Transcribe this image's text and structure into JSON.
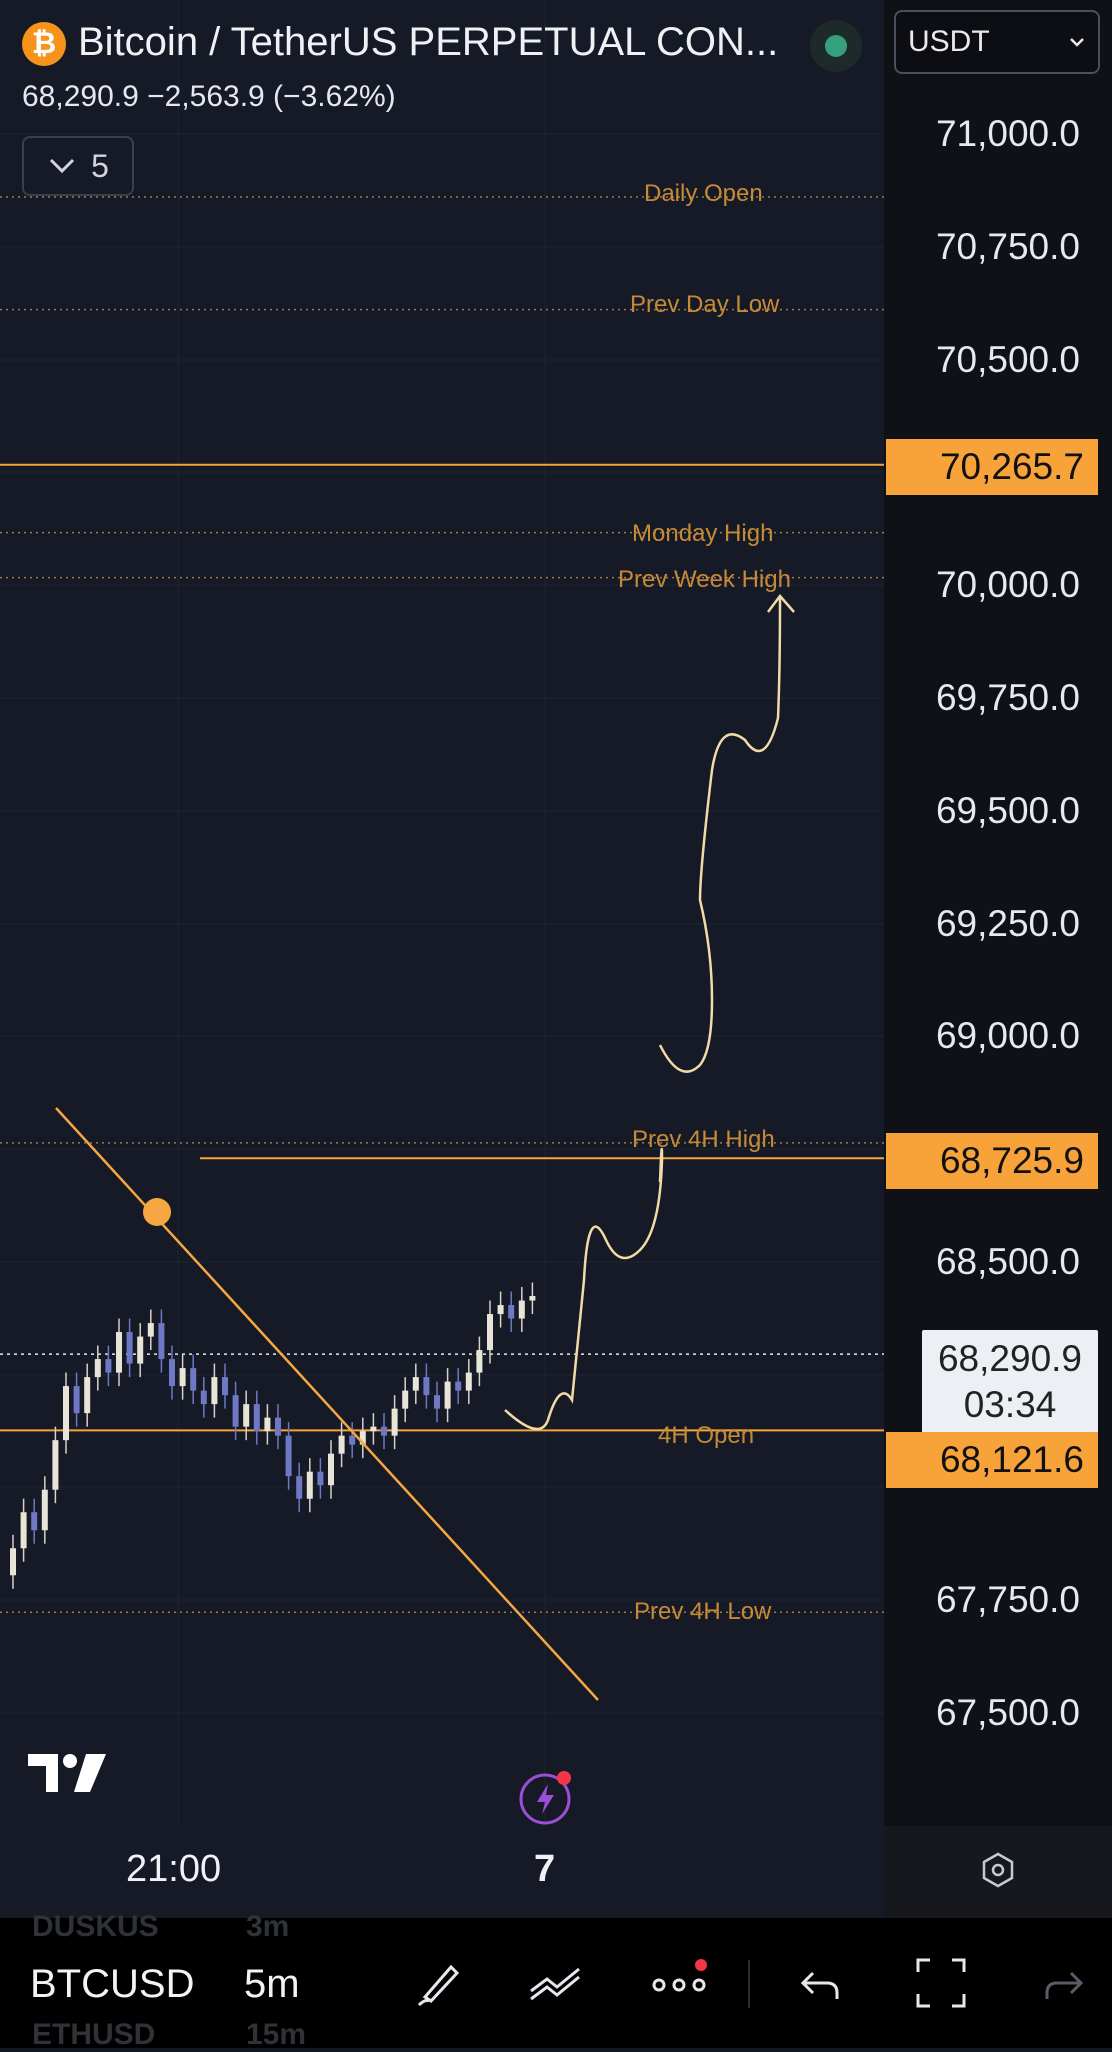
{
  "header": {
    "coin_glyph": "₿",
    "title": "Bitcoin / TetherUS PERPETUAL CON...",
    "price_line": "68,290.9  −2,563.9 (−3.62%)",
    "indicator_count": "5",
    "currency": "USDT"
  },
  "price_axis": {
    "ticks": [
      "71,000.0",
      "70,750.0",
      "70,500.0",
      "70,000.0",
      "69,750.0",
      "69,500.0",
      "69,250.0",
      "69,000.0",
      "68,500.0",
      "67,750.0",
      "67,500.0"
    ],
    "badges": {
      "high_level": "70,265.7",
      "entry_level": "68,725.9",
      "current_price": "68,290.9",
      "countdown": "03:34",
      "open_level": "68,121.6"
    }
  },
  "levels": [
    "Daily Open",
    "Prev Day Low",
    "Monday High",
    "Prev Week High",
    "Prev 4H High",
    "4H Open",
    "Prev 4H Low"
  ],
  "time_axis": {
    "labels": [
      "21:00",
      "7"
    ]
  },
  "bottom_bar": {
    "symbol": "BTCUSD",
    "interval": "5m",
    "ghost_above_symbol": "DUSKUS",
    "ghost_above_interval": "3m",
    "ghost_below_symbol": "ETHUSD",
    "ghost_below_interval": "15m"
  },
  "chart_data": {
    "type": "candlestick",
    "symbol": "Bitcoin / TetherUS PERPETUAL CON...",
    "interval": "5m",
    "price_range": [
      67350,
      71200
    ],
    "reference_lines": [
      {
        "label": "Daily Open",
        "price": 70860,
        "style": "dotted"
      },
      {
        "label": "Prev Day Low",
        "price": 70610,
        "style": "dotted"
      },
      {
        "label": "",
        "price": 70265.7,
        "style": "solid"
      },
      {
        "label": "Monday High",
        "price": 70115,
        "style": "dotted"
      },
      {
        "label": "Prev Week High",
        "price": 70015,
        "style": "dotted"
      },
      {
        "label": "Prev 4H High",
        "price": 68760,
        "style": "dotted"
      },
      {
        "label": "",
        "price": 68725.9,
        "style": "solid"
      },
      {
        "label": "",
        "price": 68290.9,
        "style": "dotted-white"
      },
      {
        "label": "4H Open",
        "price": 68121.6,
        "style": "solid"
      },
      {
        "label": "Prev 4H Low",
        "price": 67718,
        "style": "dotted"
      }
    ],
    "colors": {
      "accent": "#f7a33a",
      "up_candle": "#e8e4d8",
      "down_candle": "#6f78c4",
      "drawing": "#f1dca8",
      "trendline": "#f5a742"
    }
  }
}
